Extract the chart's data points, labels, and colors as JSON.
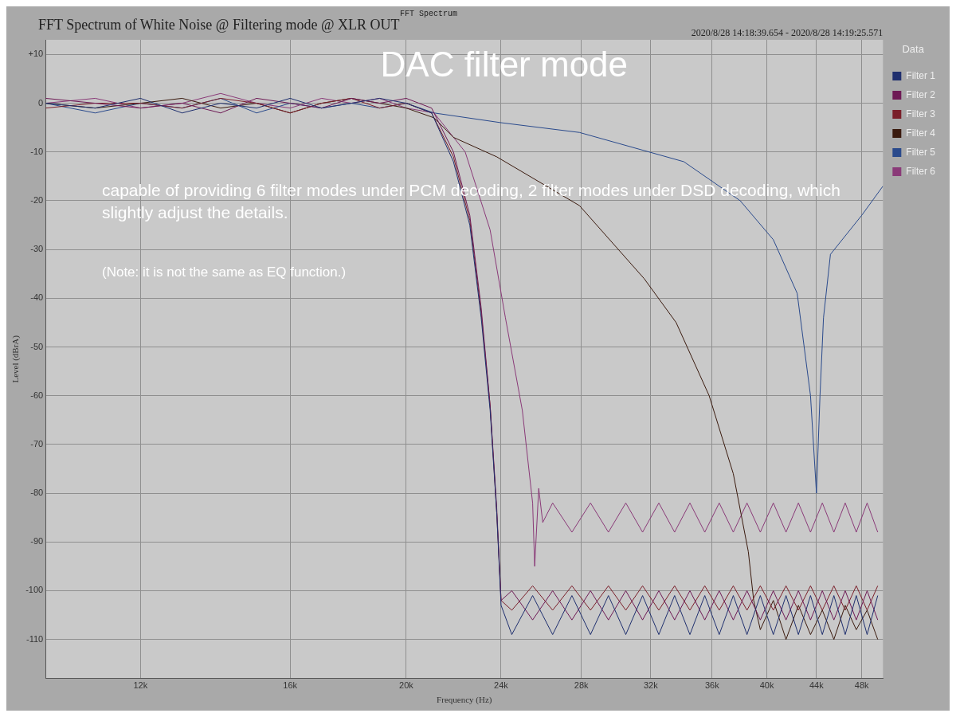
{
  "chart_data": {
    "type": "line",
    "title": "DAC filter mode",
    "xlabel": "Frequency (Hz)",
    "ylabel": "Level (dBrA)",
    "legend_title": "Data",
    "legend": "top right",
    "grid": true,
    "log": "x",
    "annotations": [
      "FFT Spectrum of White Noise @ Filtering mode @ XLR OUT",
      "FFT Spectrum",
      "2020/8/28 14:18:39.654 - 2020/8/28 14:19:25.571",
      "capable of providing 6 filter modes under PCM decoding, 2 filter modes under DSD decoding, which slightly adjust the details.",
      "(Note: it is not the same as EQ function.)"
    ],
    "xlim": [
      10000,
      50000
    ],
    "xticks": [
      {
        "value": 12000,
        "label": "12k"
      },
      {
        "value": 16000,
        "label": "16k"
      },
      {
        "value": 20000,
        "label": "20k"
      },
      {
        "value": 24000,
        "label": "24k"
      },
      {
        "value": 28000,
        "label": "28k"
      },
      {
        "value": 32000,
        "label": "32k"
      },
      {
        "value": 36000,
        "label": "36k"
      },
      {
        "value": 40000,
        "label": "40k"
      },
      {
        "value": 44000,
        "label": "44k"
      },
      {
        "value": 48000,
        "label": "48k"
      }
    ],
    "ylim": [
      -118,
      13
    ],
    "yticks": [
      {
        "value": 10,
        "label": "+10"
      },
      0,
      -10,
      -20,
      -30,
      -40,
      -50,
      -60,
      -70,
      -80,
      -90,
      -100,
      -110
    ],
    "series": [
      {
        "name": "Filter 1",
        "color": "#1f2f6e",
        "x": [
          10000,
          11000,
          12000,
          13000,
          14000,
          15000,
          16000,
          17000,
          18000,
          19000,
          20000,
          21000,
          21900,
          22600,
          23100,
          23500,
          23800,
          24000,
          24500,
          25500,
          26500,
          27500,
          28500,
          29500,
          30500,
          31500,
          32500,
          33500,
          34500,
          35500,
          36500,
          37500,
          38500,
          39500,
          40500,
          41500,
          42500,
          43500,
          44500,
          45500,
          46500,
          47500,
          48500,
          49500
        ],
        "values": [
          0,
          -1,
          1,
          -2,
          0,
          -1,
          1,
          -1,
          0,
          1,
          0,
          -2,
          -12,
          -25,
          -44,
          -63,
          -84,
          -103,
          -109,
          -101,
          -109,
          -101,
          -109,
          -101,
          -109,
          -101,
          -109,
          -101,
          -109,
          -101,
          -109,
          -101,
          -109,
          -101,
          -109,
          -101,
          -109,
          -101,
          -109,
          -101,
          -109,
          -101,
          -109,
          -101
        ]
      },
      {
        "name": "Filter 2",
        "color": "#6e1a55",
        "x": [
          10000,
          11000,
          12000,
          13000,
          14000,
          15000,
          16000,
          17000,
          18000,
          19000,
          20000,
          21000,
          21900,
          22600,
          23100,
          23500,
          23800,
          24000,
          24500,
          25500,
          26500,
          27500,
          28500,
          29500,
          30500,
          31500,
          32500,
          33500,
          34500,
          35500,
          36500,
          37500,
          38500,
          39500,
          40500,
          41500,
          42500,
          43500,
          44500,
          45500,
          46500,
          47500,
          48500,
          49500
        ],
        "values": [
          1,
          0,
          -1,
          0,
          -2,
          1,
          0,
          -1,
          1,
          0,
          1,
          -1,
          -10,
          -23,
          -42,
          -62,
          -83,
          -102,
          -100,
          -106,
          -100,
          -106,
          -100,
          -106,
          -100,
          -106,
          -100,
          -106,
          -100,
          -106,
          -100,
          -106,
          -100,
          -106,
          -100,
          -106,
          -100,
          -106,
          -100,
          -106,
          -100,
          -106,
          -100,
          -106
        ]
      },
      {
        "name": "Filter 3",
        "color": "#7a1f2a",
        "x": [
          10000,
          11000,
          12000,
          13000,
          14000,
          15000,
          16000,
          17000,
          18000,
          19000,
          20000,
          21000,
          21900,
          22600,
          23100,
          23500,
          23800,
          24000,
          24500,
          25500,
          26500,
          27500,
          28500,
          29500,
          30500,
          31500,
          32500,
          33500,
          34500,
          35500,
          36500,
          37500,
          38500,
          39500,
          40500,
          41500,
          42500,
          43500,
          44500,
          45500,
          46500,
          47500,
          48500,
          49500
        ],
        "values": [
          -1,
          0,
          0,
          -1,
          1,
          0,
          -2,
          0,
          1,
          -1,
          0,
          -2,
          -11,
          -24,
          -43,
          -62,
          -84,
          -102,
          -104,
          -99,
          -104,
          -99,
          -104,
          -99,
          -104,
          -99,
          -104,
          -99,
          -104,
          -99,
          -104,
          -99,
          -104,
          -99,
          -104,
          -99,
          -104,
          -99,
          -104,
          -99,
          -104,
          -99,
          -104,
          -99
        ]
      },
      {
        "name": "Filter 4",
        "color": "#3a1a0e",
        "x": [
          10000,
          11000,
          12000,
          13000,
          14000,
          15000,
          16000,
          17000,
          18000,
          19000,
          20000,
          21100,
          21900,
          23800,
          27900,
          31600,
          33600,
          35800,
          37500,
          38600,
          39000,
          39500,
          40500,
          41500,
          42500,
          43500,
          44500,
          45500,
          46500,
          47500,
          48500,
          49500
        ],
        "values": [
          0,
          -1,
          0,
          1,
          -1,
          0,
          -2,
          0,
          1,
          0,
          -1,
          -3,
          -7,
          -11,
          -21,
          -36,
          -45,
          -60,
          -76,
          -92,
          -102,
          -108,
          -102,
          -110,
          -103,
          -109,
          -104,
          -110,
          -103,
          -108,
          -104,
          -110
        ]
      },
      {
        "name": "Filter 5",
        "color": "#2a4a8c",
        "x": [
          10000,
          11000,
          12000,
          13000,
          14000,
          15000,
          16000,
          17000,
          18000,
          19000,
          20000,
          21100,
          24000,
          27900,
          34100,
          38000,
          40500,
          42400,
          43500,
          44000,
          44300,
          44600,
          45200,
          48000,
          50000
        ],
        "values": [
          0,
          -2,
          0,
          -1,
          1,
          -2,
          0,
          -1,
          0,
          -1,
          0,
          -2,
          -4,
          -6,
          -12,
          -20,
          -28,
          -39,
          -60,
          -80,
          -60,
          -44,
          -31,
          -23,
          -17
        ]
      },
      {
        "name": "Filter 6",
        "color": "#8a3a78",
        "x": [
          10000,
          11000,
          12000,
          13000,
          14000,
          15000,
          16000,
          17000,
          18000,
          19000,
          20000,
          21100,
          22400,
          23500,
          24200,
          25000,
          25500,
          25600,
          25800,
          26000,
          26500,
          27500,
          28500,
          29500,
          30500,
          31500,
          32500,
          33500,
          34500,
          35500,
          36500,
          37500,
          38500,
          39500,
          40500,
          41500,
          42500,
          43500,
          44500,
          45500,
          46500,
          47500,
          48500,
          49500
        ],
        "values": [
          0,
          1,
          -1,
          0,
          2,
          0,
          -1,
          1,
          0,
          1,
          -1,
          -2,
          -10,
          -26,
          -44,
          -63,
          -82,
          -95,
          -79,
          -86,
          -82,
          -88,
          -82,
          -88,
          -82,
          -88,
          -82,
          -88,
          -82,
          -88,
          -82,
          -88,
          -82,
          -88,
          -82,
          -88,
          -82,
          -88,
          -82,
          -88,
          -82,
          -88,
          -82,
          -88
        ]
      }
    ]
  }
}
